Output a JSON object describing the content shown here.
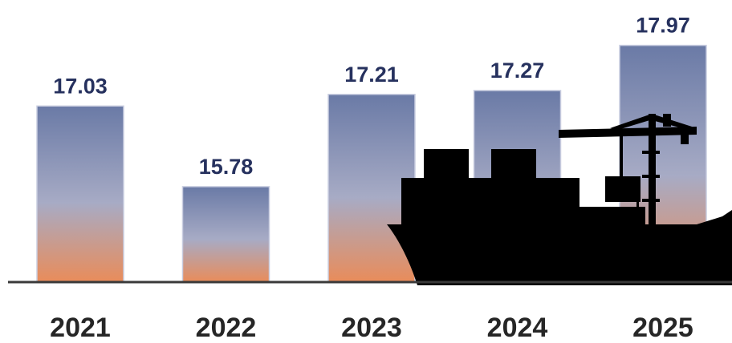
{
  "chart_data": {
    "type": "bar",
    "categories": [
      "2021",
      "2022",
      "2023",
      "2024",
      "2025"
    ],
    "values": [
      17.03,
      15.78,
      17.21,
      17.27,
      17.97
    ],
    "value_labels": [
      "17.03",
      "15.78",
      "17.21",
      "17.27",
      "17.97"
    ],
    "title": "",
    "xlabel": "",
    "ylabel": "",
    "ylim": [
      14.3,
      18.45
    ],
    "grid": false,
    "legend": "none",
    "bar_gradient": {
      "top": "#6a7aa6",
      "middle": "#a7abc5",
      "bottom": "#e98c5a"
    },
    "bar_border": "#c9cde0",
    "label_color": "#26315e",
    "tick_color": "#262626",
    "axis_color": "#3a3a3a",
    "illustration": "cargo-ship-and-crane-silhouette",
    "illustration_color": "#000000"
  }
}
